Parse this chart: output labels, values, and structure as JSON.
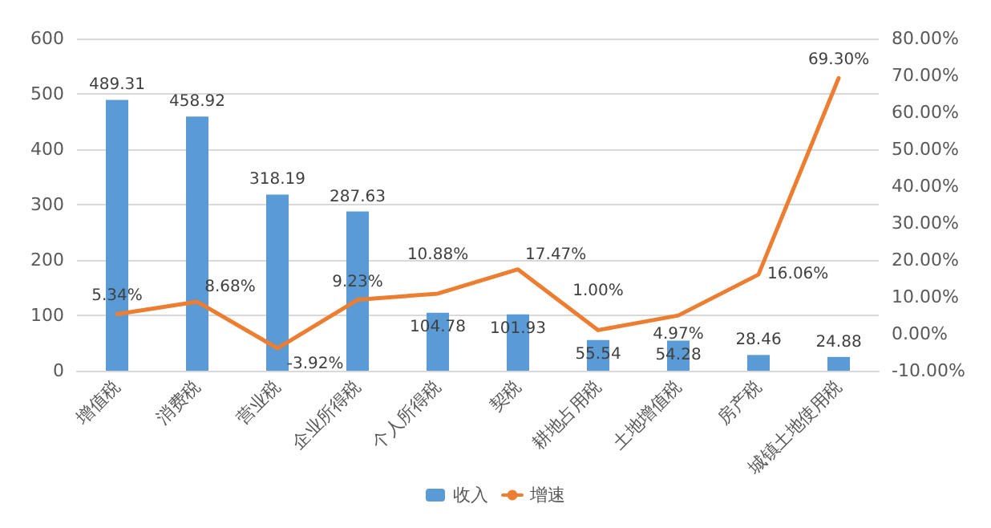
{
  "chart_data": {
    "type": "bar",
    "categories": [
      "增值税",
      "消费税",
      "营业税",
      "企业所得税",
      "个人所得税",
      "契税",
      "耕地占用税",
      "土地增值税",
      "房产税",
      "城镇土地使用税"
    ],
    "series": [
      {
        "name": "收入",
        "color": "#5b9bd5",
        "values": [
          489.31,
          458.92,
          318.19,
          287.63,
          104.78,
          101.93,
          55.54,
          54.28,
          28.46,
          24.88
        ],
        "value_labels": [
          "489.31",
          "458.92",
          "318.19",
          "287.63",
          "104.78",
          "101.93",
          "55.54",
          "54.28",
          "28.46",
          "24.88"
        ]
      },
      {
        "name": "增速",
        "type": "line",
        "axis": "y2",
        "color": "#ed7d31",
        "values": [
          5.34,
          8.68,
          -3.92,
          9.23,
          10.88,
          17.47,
          1.0,
          4.97,
          16.06,
          69.3
        ],
        "value_labels": [
          "5.34%",
          "8.68%",
          "-3.92%",
          "9.23%",
          "10.88%",
          "17.47%",
          "1.00%",
          "4.97%",
          "16.06%",
          "69.30%"
        ]
      }
    ],
    "ylim": [
      0,
      600
    ],
    "yticks": [
      0,
      100,
      200,
      300,
      400,
      500,
      600
    ],
    "y2lim": [
      -10,
      80
    ],
    "y2ticks": [
      {
        "value": -10,
        "label": "-10.00%"
      },
      {
        "value": 0,
        "label": "0.00%"
      },
      {
        "value": 10,
        "label": "10.00%"
      },
      {
        "value": 20,
        "label": "20.00%"
      },
      {
        "value": 30,
        "label": "30.00%"
      },
      {
        "value": 40,
        "label": "40.00%"
      },
      {
        "value": 50,
        "label": "50.00%"
      },
      {
        "value": 60,
        "label": "60.00%"
      },
      {
        "value": 70,
        "label": "70.00%"
      },
      {
        "value": 80,
        "label": "80.00%"
      }
    ],
    "grid": "y",
    "legend": "bottom",
    "marker": "none",
    "line_style": "solid"
  }
}
